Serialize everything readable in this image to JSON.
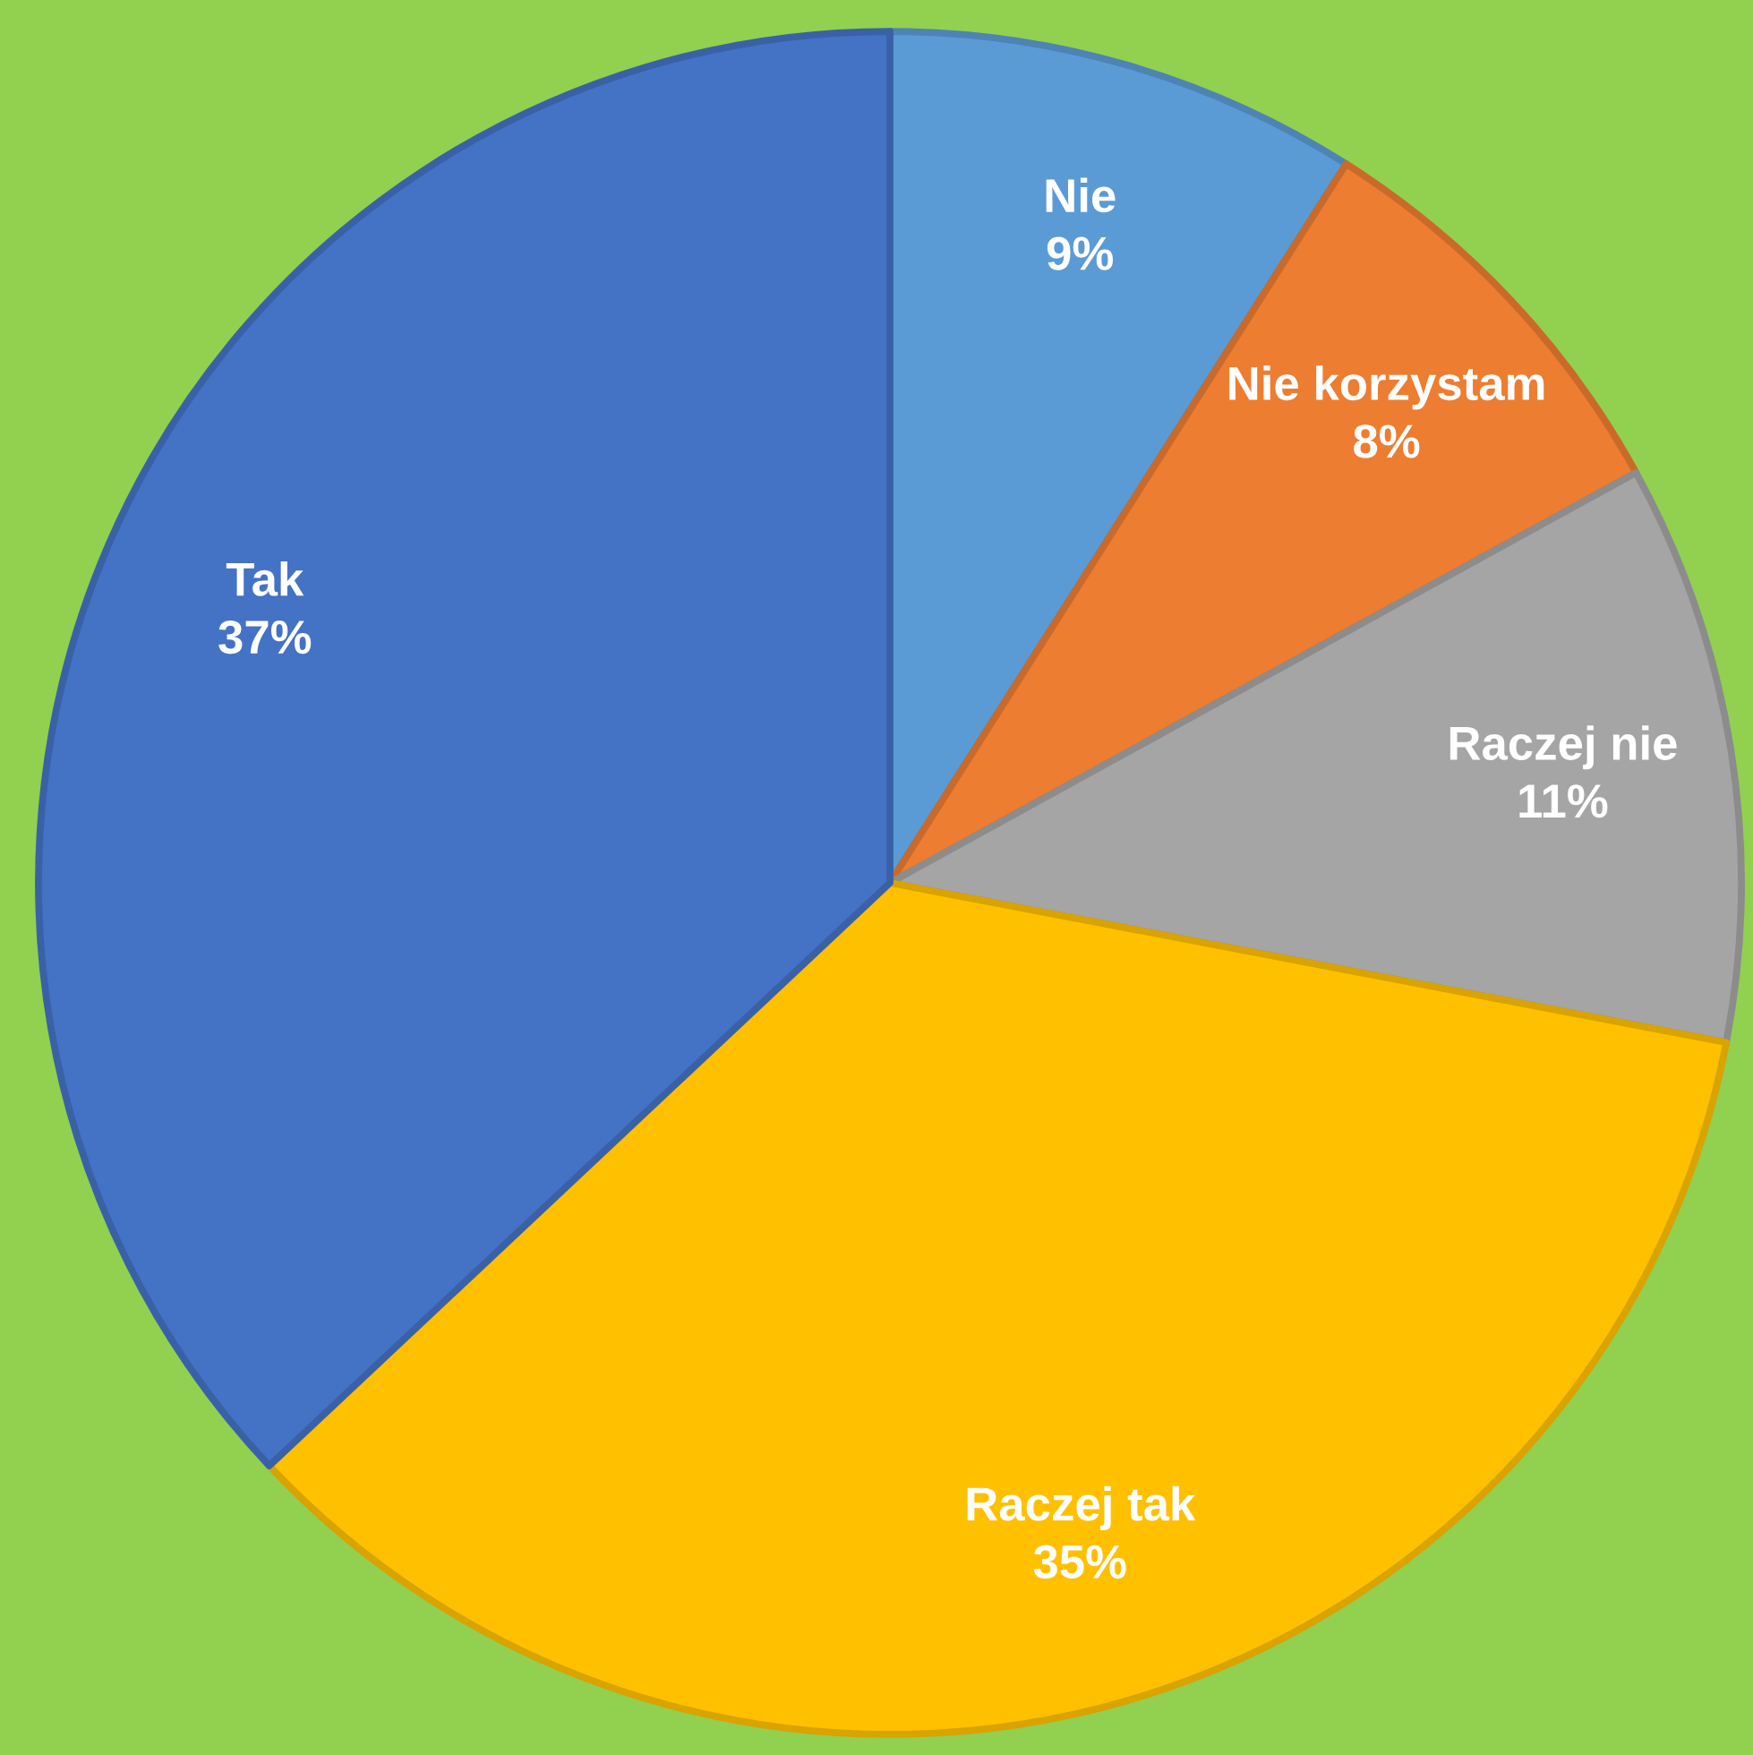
{
  "chart_data": {
    "type": "pie",
    "categories": [
      "Nie",
      "Nie korzystam",
      "Raczej nie",
      "Raczej tak",
      "Tak"
    ],
    "values": [
      9,
      8,
      11,
      35,
      37
    ],
    "colors": [
      "#5b9bd5",
      "#ed7d31",
      "#a5a5a5",
      "#ffc000",
      "#4472c4"
    ],
    "value_labels": [
      "9%",
      "8%",
      "11%",
      "35%",
      "37%"
    ]
  }
}
